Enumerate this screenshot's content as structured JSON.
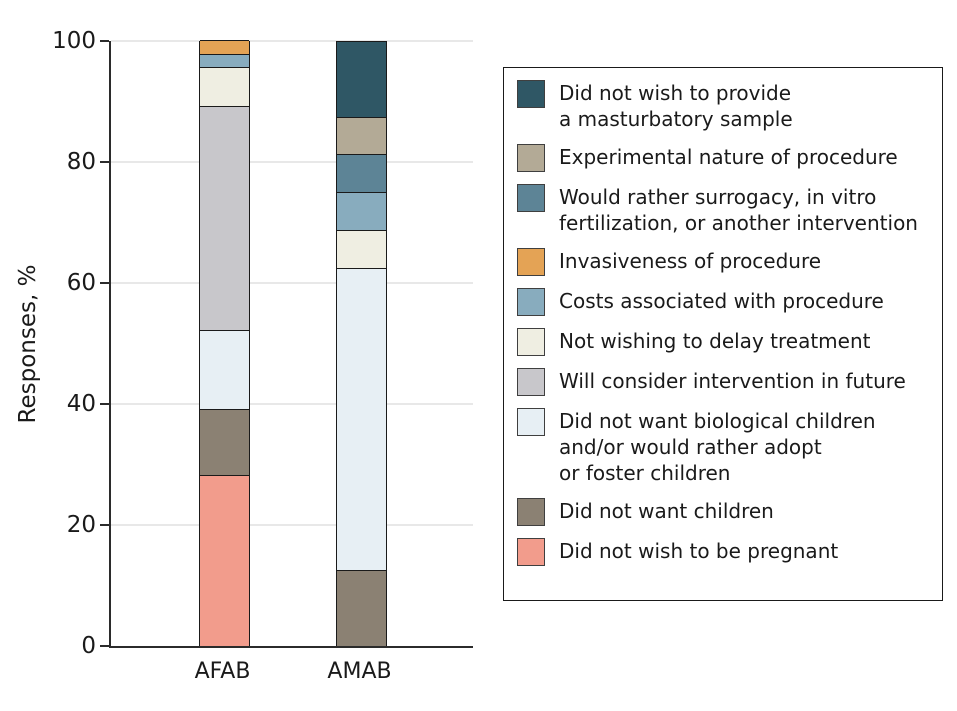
{
  "chart_data": {
    "type": "bar",
    "stacked": true,
    "title": "",
    "xlabel": "",
    "ylabel": "Responses, %",
    "ylim": [
      0,
      100
    ],
    "yticks": [
      0,
      20,
      40,
      60,
      80,
      100
    ],
    "grid": "horizontal",
    "legend_position": "right",
    "stack_note": "legend top entry is topmost bar segment; zero values omitted from bars",
    "categories": [
      "AFAB",
      "AMAB"
    ],
    "series": [
      {
        "name": "Did not wish to provide a masturbatory sample",
        "legend_lines": [
          "Did not wish to provide",
          "a masturbatory sample"
        ],
        "color": "#2F5765",
        "values": [
          0,
          12.5
        ]
      },
      {
        "name": "Experimental nature of procedure",
        "legend_lines": [
          "Experimental nature of procedure"
        ],
        "color": "#B3AA96",
        "values": [
          0,
          6.25
        ]
      },
      {
        "name": "Would rather surrogacy, in vitro fertilization, or another intervention",
        "legend_lines": [
          "Would rather surrogacy, in vitro",
          "fertilization, or another intervention"
        ],
        "color": "#5D8496",
        "values": [
          0,
          6.25
        ]
      },
      {
        "name": "Invasiveness of procedure",
        "legend_lines": [
          "Invasiveness of procedure"
        ],
        "color": "#E4A355",
        "values": [
          2.2,
          0
        ]
      },
      {
        "name": "Costs associated with procedure",
        "legend_lines": [
          "Costs associated with procedure"
        ],
        "color": "#88ACBE",
        "values": [
          2.2,
          6.25
        ]
      },
      {
        "name": "Not wishing to delay treatment",
        "legend_lines": [
          "Not wishing to delay treatment"
        ],
        "color": "#EFEEE2",
        "values": [
          6.5,
          6.25
        ]
      },
      {
        "name": "Will consider intervention in future",
        "legend_lines": [
          "Will consider intervention in future"
        ],
        "color": "#C8C7CB",
        "values": [
          37.0,
          0
        ]
      },
      {
        "name": "Did not want biological children and/or would rather adopt or foster children",
        "legend_lines": [
          "Did not want biological children",
          "and/or would rather adopt",
          "or foster children"
        ],
        "color": "#E7EFF4",
        "values": [
          13.0,
          50.0
        ]
      },
      {
        "name": "Did not want children",
        "legend_lines": [
          "Did not want children"
        ],
        "color": "#8B8173",
        "values": [
          10.9,
          12.5
        ]
      },
      {
        "name": "Did not wish to be pregnant",
        "legend_lines": [
          "Did not wish to be pregnant"
        ],
        "color": "#F29C8C",
        "values": [
          28.3,
          0
        ]
      }
    ],
    "appearance": {
      "background": "#FFFFFF",
      "axis_color": "#2B2B2B",
      "gridline_color": "#E8E8E8",
      "segment_border_color": "#1A1A1A",
      "text_color": "#1A1A1A"
    }
  }
}
